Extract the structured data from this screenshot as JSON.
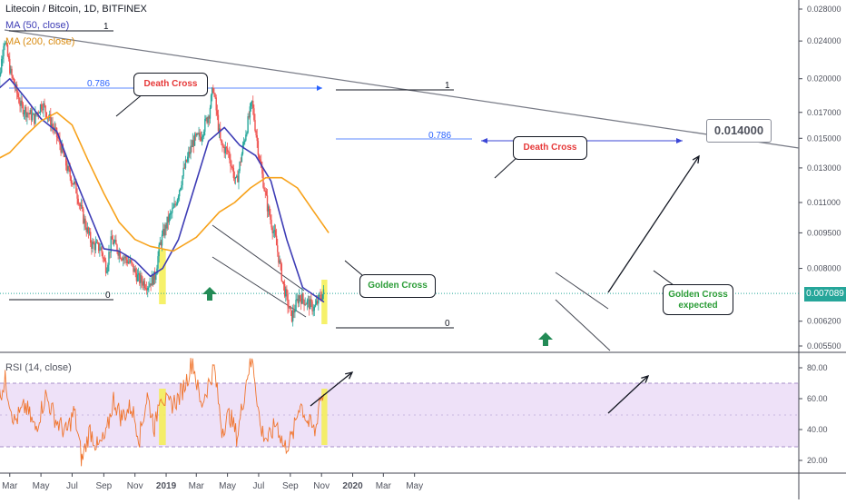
{
  "header": {
    "title": "Litecoin / Bitcoin, 1D, BITFINEX",
    "ma50_label": "MA (50, close)",
    "ma200_label": "MA (200, close)",
    "rsi_label": "RSI (14, close)"
  },
  "colors": {
    "bull": "#26a69a",
    "bear": "#ef5350",
    "ma50": "#3d3cb5",
    "ma200": "#f7a21b",
    "rsi": "#f0752e",
    "rsi_band": "#e7d4f5",
    "highlight": "#f5ee50",
    "fib": "#2962ff",
    "arrow_up": "#238b56",
    "price_tag": "#26a69a"
  },
  "chart_data": [
    {
      "type": "candlestick",
      "title": "Litecoin / Bitcoin, 1D, BITFINEX",
      "y_scale": "log",
      "x_tick_labels": [
        "Mar",
        "May",
        "Jul",
        "Sep",
        "Nov",
        "2019",
        "Mar",
        "May",
        "Jul",
        "Sep",
        "Nov",
        "2020",
        "Mar",
        "May"
      ],
      "y_tick_labels": [
        "0.028000",
        "0.024000",
        "0.020000",
        "0.017000",
        "0.015000",
        "0.013000",
        "0.011000",
        "0.009500",
        "0.008000",
        "0.006200",
        "0.005500"
      ],
      "last_price": "0.007089",
      "ylim": [
        0.0053,
        0.029
      ],
      "price_path": [
        [
          "2018-02-01",
          0.0165
        ],
        [
          "2018-02-12",
          0.0205
        ],
        [
          "2018-02-20",
          0.0245
        ],
        [
          "2018-03-05",
          0.0205
        ],
        [
          "2018-03-25",
          0.0175
        ],
        [
          "2018-04-20",
          0.0165
        ],
        [
          "2018-05-05",
          0.0178
        ],
        [
          "2018-05-25",
          0.016
        ],
        [
          "2018-06-10",
          0.0145
        ],
        [
          "2018-06-25",
          0.0128
        ],
        [
          "2018-07-10",
          0.0118
        ],
        [
          "2018-07-25",
          0.0102
        ],
        [
          "2018-08-10",
          0.009
        ],
        [
          "2018-08-28",
          0.0088
        ],
        [
          "2018-09-08",
          0.008
        ],
        [
          "2018-09-18",
          0.0092
        ],
        [
          "2018-10-05",
          0.0086
        ],
        [
          "2018-10-25",
          0.0082
        ],
        [
          "2018-11-10",
          0.0076
        ],
        [
          "2018-11-28",
          0.0074
        ],
        [
          "2018-12-12",
          0.0077
        ],
        [
          "2018-12-22",
          0.009
        ],
        [
          "2019-01-05",
          0.01
        ],
        [
          "2019-01-20",
          0.0108
        ],
        [
          "2019-02-08",
          0.013
        ],
        [
          "2019-02-25",
          0.0148
        ],
        [
          "2019-03-12",
          0.0152
        ],
        [
          "2019-03-28",
          0.017
        ],
        [
          "2019-04-05",
          0.0192
        ],
        [
          "2019-04-20",
          0.0145
        ],
        [
          "2019-05-05",
          0.014
        ],
        [
          "2019-05-20",
          0.012
        ],
        [
          "2019-06-08",
          0.0155
        ],
        [
          "2019-06-20",
          0.0178
        ],
        [
          "2019-07-05",
          0.0135
        ],
        [
          "2019-07-20",
          0.0108
        ],
        [
          "2019-08-05",
          0.0092
        ],
        [
          "2019-08-20",
          0.0074
        ],
        [
          "2019-09-05",
          0.0063
        ],
        [
          "2019-09-20",
          0.007
        ],
        [
          "2019-10-05",
          0.0068
        ],
        [
          "2019-10-20",
          0.0066
        ],
        [
          "2019-11-01",
          0.007
        ],
        [
          "2019-11-06",
          0.00709
        ]
      ],
      "series": [
        {
          "name": "MA (50, close)",
          "points": [
            [
              "2018-02-01",
              0.0188
            ],
            [
              "2018-03-01",
              0.02
            ],
            [
              "2018-04-01",
              0.0182
            ],
            [
              "2018-05-01",
              0.0165
            ],
            [
              "2018-06-01",
              0.0155
            ],
            [
              "2018-07-01",
              0.0128
            ],
            [
              "2018-08-01",
              0.0106
            ],
            [
              "2018-09-01",
              0.0088
            ],
            [
              "2018-10-01",
              0.0087
            ],
            [
              "2018-11-01",
              0.0083
            ],
            [
              "2018-12-01",
              0.0077
            ],
            [
              "2018-12-25",
              0.008
            ],
            [
              "2019-01-25",
              0.0092
            ],
            [
              "2019-02-25",
              0.0118
            ],
            [
              "2019-03-25",
              0.0148
            ],
            [
              "2019-04-25",
              0.0158
            ],
            [
              "2019-05-25",
              0.0145
            ],
            [
              "2019-06-25",
              0.0138
            ],
            [
              "2019-07-25",
              0.0122
            ],
            [
              "2019-08-25",
              0.0092
            ],
            [
              "2019-09-25",
              0.0073
            ],
            [
              "2019-11-06",
              0.0068
            ]
          ]
        },
        {
          "name": "MA (200, close)",
          "points": [
            [
              "2018-02-01",
              0.0135
            ],
            [
              "2018-03-01",
              0.014
            ],
            [
              "2018-04-01",
              0.0152
            ],
            [
              "2018-05-01",
              0.0163
            ],
            [
              "2018-06-01",
              0.017
            ],
            [
              "2018-07-01",
              0.016
            ],
            [
              "2018-08-01",
              0.0135
            ],
            [
              "2018-09-01",
              0.0115
            ],
            [
              "2018-10-01",
              0.01
            ],
            [
              "2018-11-01",
              0.0092
            ],
            [
              "2018-12-01",
              0.0089
            ],
            [
              "2019-01-15",
              0.0087
            ],
            [
              "2019-03-01",
              0.0093
            ],
            [
              "2019-04-15",
              0.0105
            ],
            [
              "2019-05-15",
              0.011
            ],
            [
              "2019-06-15",
              0.0118
            ],
            [
              "2019-07-15",
              0.0124
            ],
            [
              "2019-08-15",
              0.0124
            ],
            [
              "2019-09-15",
              0.0118
            ],
            [
              "2019-10-15",
              0.0106
            ],
            [
              "2019-11-15",
              0.0095
            ]
          ]
        }
      ],
      "annotations": {
        "death_cross": "Death Cross",
        "golden_cross": "Golden Cross",
        "golden_cross_expected": "Golden Cross\nexpected",
        "target": "0.014000",
        "fib_0786": "0.786",
        "fib_1": "1",
        "fib_0": "0"
      }
    },
    {
      "type": "line",
      "title": "RSI (14, close)",
      "y_tick_labels": [
        "80.00",
        "60.00",
        "40.00",
        "20.00"
      ],
      "ylim": [
        14,
        90
      ],
      "band": [
        30,
        70
      ],
      "series": [
        {
          "name": "RSI (14, close)",
          "points": [
            [
              "2018-02-01",
              55
            ],
            [
              "2018-02-20",
              72
            ],
            [
              "2018-03-10",
              45
            ],
            [
              "2018-04-01",
              55
            ],
            [
              "2018-04-20",
              40
            ],
            [
              "2018-05-10",
              62
            ],
            [
              "2018-06-01",
              45
            ],
            [
              "2018-06-20",
              38
            ],
            [
              "2018-07-05",
              52
            ],
            [
              "2018-07-20",
              20
            ],
            [
              "2018-08-05",
              40
            ],
            [
              "2018-08-20",
              28
            ],
            [
              "2018-09-05",
              35
            ],
            [
              "2018-09-20",
              60
            ],
            [
              "2018-10-05",
              48
            ],
            [
              "2018-10-25",
              55
            ],
            [
              "2018-11-10",
              35
            ],
            [
              "2018-11-25",
              62
            ],
            [
              "2018-12-10",
              40
            ],
            [
              "2018-12-20",
              65
            ],
            [
              "2019-01-05",
              55
            ],
            [
              "2019-01-25",
              60
            ],
            [
              "2019-02-10",
              72
            ],
            [
              "2019-02-22",
              85
            ],
            [
              "2019-03-10",
              55
            ],
            [
              "2019-03-25",
              70
            ],
            [
              "2019-04-05",
              80
            ],
            [
              "2019-04-20",
              40
            ],
            [
              "2019-05-05",
              50
            ],
            [
              "2019-05-20",
              35
            ],
            [
              "2019-06-10",
              78
            ],
            [
              "2019-06-20",
              84
            ],
            [
              "2019-07-05",
              40
            ],
            [
              "2019-07-20",
              33
            ],
            [
              "2019-08-05",
              45
            ],
            [
              "2019-08-20",
              28
            ],
            [
              "2019-09-05",
              35
            ],
            [
              "2019-09-20",
              58
            ],
            [
              "2019-10-05",
              45
            ],
            [
              "2019-10-20",
              38
            ],
            [
              "2019-10-28",
              60
            ],
            [
              "2019-11-06",
              63
            ]
          ]
        }
      ]
    }
  ]
}
